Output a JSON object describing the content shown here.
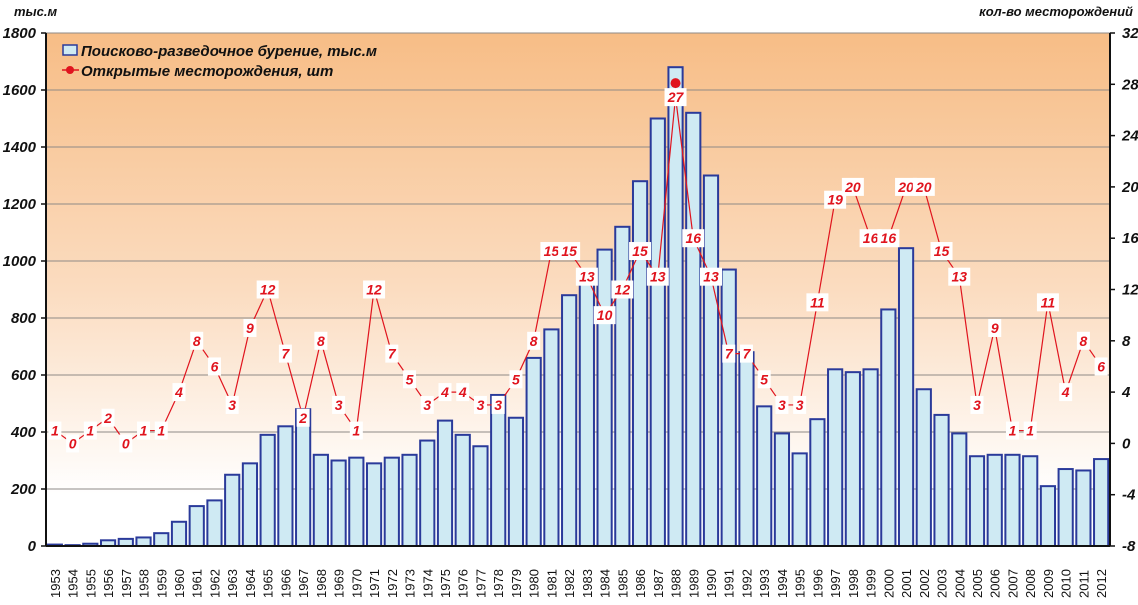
{
  "chart_data": {
    "type": "bar+line",
    "title": "",
    "left_axis": {
      "label": "тыс.м",
      "range": [
        0,
        1800
      ],
      "ticks": [
        0,
        200,
        400,
        600,
        800,
        1000,
        1200,
        1400,
        1600,
        1800
      ]
    },
    "right_axis": {
      "label": "кол-во месторождений",
      "range": [
        -8,
        32
      ],
      "ticks": [
        -8,
        -4,
        0,
        4,
        8,
        12,
        16,
        20,
        24,
        28,
        32
      ]
    },
    "grid": true,
    "legend_position": "top-left",
    "categories": [
      "1953",
      "1954",
      "1955",
      "1956",
      "1957",
      "1958",
      "1959",
      "1960",
      "1961",
      "1962",
      "1963",
      "1964",
      "1965",
      "1966",
      "1967",
      "1968",
      "1969",
      "1970",
      "1971",
      "1972",
      "1973",
      "1974",
      "1975",
      "1976",
      "1977",
      "1978",
      "1979",
      "1980",
      "1981",
      "1982",
      "1983",
      "1984",
      "1985",
      "1986",
      "1987",
      "1988",
      "1989",
      "1990",
      "1991",
      "1992",
      "1993",
      "1994",
      "1995",
      "1996",
      "1997",
      "1998",
      "1999",
      "2000",
      "2001",
      "2002",
      "2003",
      "2004",
      "2005",
      "2006",
      "2007",
      "2008",
      "2009",
      "2010",
      "2011",
      "2012"
    ],
    "series": [
      {
        "name": "Поисково-разведочное бурение, тыс.м",
        "type": "bar",
        "axis": "left",
        "color": "#cfeaf3",
        "edge_color": "#2a3a9a",
        "values": [
          5,
          3,
          8,
          20,
          25,
          30,
          45,
          85,
          140,
          160,
          250,
          290,
          390,
          420,
          480,
          320,
          300,
          310,
          290,
          310,
          320,
          370,
          440,
          390,
          350,
          530,
          450,
          660,
          760,
          880,
          920,
          1040,
          1120,
          1280,
          1500,
          1680,
          1520,
          1300,
          970,
          680,
          490,
          395,
          325,
          445,
          620,
          610,
          620,
          830,
          1045,
          550,
          460,
          395,
          315,
          320,
          320,
          315,
          210,
          270,
          265,
          305
        ]
      },
      {
        "name": "Открытые месторождения, шт",
        "type": "line",
        "axis": "right",
        "color": "#e0141e",
        "values": [
          1,
          0,
          1,
          2,
          0,
          1,
          1,
          4,
          8,
          6,
          3,
          9,
          12,
          7,
          2,
          8,
          3,
          1,
          12,
          7,
          5,
          3,
          4,
          4,
          3,
          3,
          5,
          8,
          15,
          15,
          13,
          10,
          12,
          15,
          13,
          27,
          16,
          13,
          7,
          7,
          5,
          3,
          3,
          11,
          19,
          20,
          16,
          16,
          20,
          20,
          15,
          13,
          3,
          9,
          1,
          1,
          11,
          4,
          8,
          6
        ]
      }
    ]
  }
}
